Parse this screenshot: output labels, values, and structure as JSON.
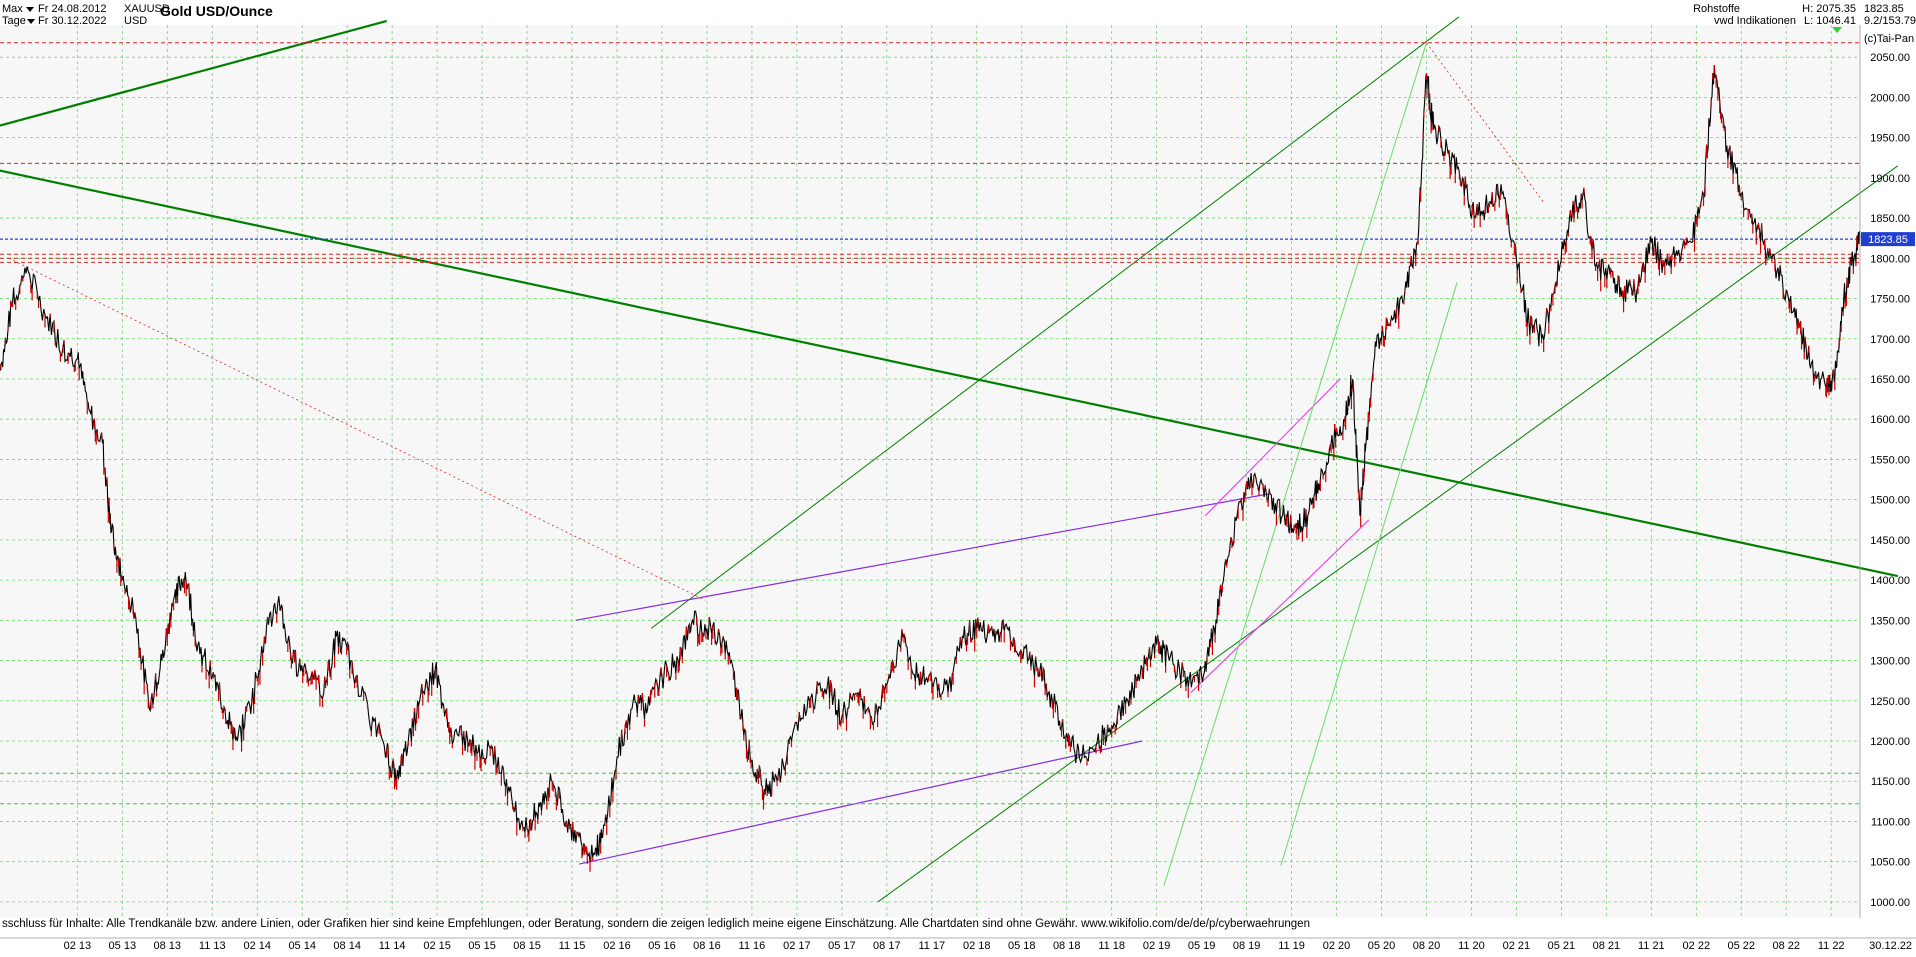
{
  "header": {
    "range_label": "Max",
    "period_label": "Tage",
    "date_from": "Fr 24.08.2012",
    "date_to": "Fr 30.12.2022",
    "symbol": "XAUUSD",
    "currency": "USD",
    "title": "Gold USD/Ounce",
    "category": "Rohstoffe",
    "source": "vwd Indikationen",
    "high_label": "H: 2075.35",
    "low_label": "L: 1046.41",
    "last_value": "1823.85",
    "change_label": "9.2/153.79",
    "copyright": "(c)Tai-Pan"
  },
  "disclaimer": "sschluss für Inhalte: Alle Trendkanäle bzw. andere Linien, oder Grafiken hier sind keine Empfehlungen, oder Beratung, sondern die zeigen lediglich meine eigene Einschätzung. Alle Chartdaten sind ohne Gewähr.  www.wikifolio.com/de/de/p/cyberwaehrungen",
  "colors": {
    "price": "#000000",
    "down_candle": "#cc0000",
    "grid": "#33cc33",
    "trend_green": "#008000",
    "trend_light": "#66dd66",
    "violet": "#8a2be2",
    "magenta": "#ee44ee",
    "resistance_red": "#dd2222",
    "last_price_line": "#1f3fd0",
    "last_price_badge": "#1f3fd0"
  },
  "chart_data": {
    "type": "line",
    "title": "Gold USD/Ounce",
    "xlabel": "",
    "ylabel": "",
    "xlim": [
      2012.65,
      2022.99
    ],
    "ylim": [
      980,
      2090
    ],
    "y_ticks": [
      1000,
      1050,
      1100,
      1150,
      1200,
      1250,
      1300,
      1350,
      1400,
      1450,
      1500,
      1550,
      1600,
      1650,
      1700,
      1750,
      1800,
      1850,
      1900,
      1950,
      2000,
      2050
    ],
    "x_ticks": [
      {
        "label": "02 13",
        "t": 2013.08
      },
      {
        "label": "05 13",
        "t": 2013.33
      },
      {
        "label": "08 13",
        "t": 2013.58
      },
      {
        "label": "11 13",
        "t": 2013.83
      },
      {
        "label": "02 14",
        "t": 2014.08
      },
      {
        "label": "05 14",
        "t": 2014.33
      },
      {
        "label": "08 14",
        "t": 2014.58
      },
      {
        "label": "11 14",
        "t": 2014.83
      },
      {
        "label": "02 15",
        "t": 2015.08
      },
      {
        "label": "05 15",
        "t": 2015.33
      },
      {
        "label": "08 15",
        "t": 2015.58
      },
      {
        "label": "11 15",
        "t": 2015.83
      },
      {
        "label": "02 16",
        "t": 2016.08
      },
      {
        "label": "05 16",
        "t": 2016.33
      },
      {
        "label": "08 16",
        "t": 2016.58
      },
      {
        "label": "11 16",
        "t": 2016.83
      },
      {
        "label": "02 17",
        "t": 2017.08
      },
      {
        "label": "05 17",
        "t": 2017.33
      },
      {
        "label": "08 17",
        "t": 2017.58
      },
      {
        "label": "11 17",
        "t": 2017.83
      },
      {
        "label": "02 18",
        "t": 2018.08
      },
      {
        "label": "05 18",
        "t": 2018.33
      },
      {
        "label": "08 18",
        "t": 2018.58
      },
      {
        "label": "11 18",
        "t": 2018.83
      },
      {
        "label": "02 19",
        "t": 2019.08
      },
      {
        "label": "05 19",
        "t": 2019.33
      },
      {
        "label": "08 19",
        "t": 2019.58
      },
      {
        "label": "11 19",
        "t": 2019.83
      },
      {
        "label": "02 20",
        "t": 2020.08
      },
      {
        "label": "05 20",
        "t": 2020.33
      },
      {
        "label": "08 20",
        "t": 2020.58
      },
      {
        "label": "11 20",
        "t": 2020.83
      },
      {
        "label": "02 21",
        "t": 2021.08
      },
      {
        "label": "05 21",
        "t": 2021.33
      },
      {
        "label": "08 21",
        "t": 2021.58
      },
      {
        "label": "11 21",
        "t": 2021.83
      },
      {
        "label": "02 22",
        "t": 2022.08
      },
      {
        "label": "05 22",
        "t": 2022.33
      },
      {
        "label": "08 22",
        "t": 2022.58
      },
      {
        "label": "11 22",
        "t": 2022.83
      }
    ],
    "end_date_label": "30.12.22",
    "last_price": 1823.85,
    "grid": true,
    "series": [
      {
        "values": [
          [
            2012.65,
            1660
          ],
          [
            2012.72,
            1745
          ],
          [
            2012.8,
            1790
          ],
          [
            2012.9,
            1730
          ],
          [
            2013.0,
            1690
          ],
          [
            2013.08,
            1675
          ],
          [
            2013.15,
            1610
          ],
          [
            2013.22,
            1570
          ],
          [
            2013.27,
            1460
          ],
          [
            2013.33,
            1400
          ],
          [
            2013.4,
            1360
          ],
          [
            2013.48,
            1240
          ],
          [
            2013.55,
            1300
          ],
          [
            2013.62,
            1380
          ],
          [
            2013.68,
            1410
          ],
          [
            2013.75,
            1320
          ],
          [
            2013.83,
            1280
          ],
          [
            2013.9,
            1240
          ],
          [
            2013.97,
            1200
          ],
          [
            2014.05,
            1250
          ],
          [
            2014.12,
            1330
          ],
          [
            2014.2,
            1380
          ],
          [
            2014.27,
            1300
          ],
          [
            2014.35,
            1290
          ],
          [
            2014.45,
            1260
          ],
          [
            2014.52,
            1330
          ],
          [
            2014.6,
            1300
          ],
          [
            2014.7,
            1230
          ],
          [
            2014.8,
            1190
          ],
          [
            2014.85,
            1150
          ],
          [
            2014.92,
            1200
          ],
          [
            2015.0,
            1260
          ],
          [
            2015.07,
            1290
          ],
          [
            2015.15,
            1210
          ],
          [
            2015.25,
            1200
          ],
          [
            2015.33,
            1190
          ],
          [
            2015.42,
            1180
          ],
          [
            2015.5,
            1120
          ],
          [
            2015.58,
            1090
          ],
          [
            2015.65,
            1120
          ],
          [
            2015.72,
            1150
          ],
          [
            2015.8,
            1100
          ],
          [
            2015.88,
            1075
          ],
          [
            2015.95,
            1060
          ],
          [
            2016.0,
            1080
          ],
          [
            2016.08,
            1180
          ],
          [
            2016.17,
            1250
          ],
          [
            2016.25,
            1240
          ],
          [
            2016.33,
            1280
          ],
          [
            2016.42,
            1300
          ],
          [
            2016.5,
            1350
          ],
          [
            2016.58,
            1340
          ],
          [
            2016.67,
            1330
          ],
          [
            2016.75,
            1260
          ],
          [
            2016.82,
            1180
          ],
          [
            2016.9,
            1140
          ],
          [
            2016.97,
            1150
          ],
          [
            2017.05,
            1200
          ],
          [
            2017.15,
            1250
          ],
          [
            2017.25,
            1270
          ],
          [
            2017.33,
            1230
          ],
          [
            2017.42,
            1260
          ],
          [
            2017.5,
            1220
          ],
          [
            2017.58,
            1270
          ],
          [
            2017.67,
            1330
          ],
          [
            2017.75,
            1280
          ],
          [
            2017.83,
            1275
          ],
          [
            2017.92,
            1260
          ],
          [
            2018.0,
            1330
          ],
          [
            2018.08,
            1340
          ],
          [
            2018.17,
            1330
          ],
          [
            2018.25,
            1340
          ],
          [
            2018.33,
            1310
          ],
          [
            2018.42,
            1290
          ],
          [
            2018.5,
            1250
          ],
          [
            2018.58,
            1210
          ],
          [
            2018.65,
            1180
          ],
          [
            2018.75,
            1200
          ],
          [
            2018.83,
            1220
          ],
          [
            2018.92,
            1250
          ],
          [
            2019.0,
            1290
          ],
          [
            2019.08,
            1320
          ],
          [
            2019.15,
            1300
          ],
          [
            2019.25,
            1280
          ],
          [
            2019.33,
            1280
          ],
          [
            2019.4,
            1340
          ],
          [
            2019.47,
            1420
          ],
          [
            2019.55,
            1500
          ],
          [
            2019.62,
            1530
          ],
          [
            2019.7,
            1500
          ],
          [
            2019.78,
            1480
          ],
          [
            2019.85,
            1465
          ],
          [
            2019.92,
            1480
          ],
          [
            2019.98,
            1520
          ],
          [
            2020.05,
            1570
          ],
          [
            2020.12,
            1600
          ],
          [
            2020.17,
            1650
          ],
          [
            2020.21,
            1480
          ],
          [
            2020.24,
            1560
          ],
          [
            2020.3,
            1690
          ],
          [
            2020.38,
            1720
          ],
          [
            2020.46,
            1760
          ],
          [
            2020.53,
            1820
          ],
          [
            2020.58,
            2030
          ],
          [
            2020.62,
            1960
          ],
          [
            2020.7,
            1930
          ],
          [
            2020.78,
            1900
          ],
          [
            2020.85,
            1850
          ],
          [
            2020.93,
            1870
          ],
          [
            2021.0,
            1880
          ],
          [
            2021.08,
            1800
          ],
          [
            2021.15,
            1720
          ],
          [
            2021.22,
            1700
          ],
          [
            2021.3,
            1770
          ],
          [
            2021.38,
            1860
          ],
          [
            2021.45,
            1880
          ],
          [
            2021.52,
            1790
          ],
          [
            2021.6,
            1780
          ],
          [
            2021.67,
            1760
          ],
          [
            2021.75,
            1760
          ],
          [
            2021.83,
            1820
          ],
          [
            2021.9,
            1790
          ],
          [
            2021.97,
            1810
          ],
          [
            2022.05,
            1820
          ],
          [
            2022.12,
            1880
          ],
          [
            2022.18,
            2040
          ],
          [
            2022.25,
            1940
          ],
          [
            2022.33,
            1880
          ],
          [
            2022.42,
            1840
          ],
          [
            2022.5,
            1800
          ],
          [
            2022.58,
            1760
          ],
          [
            2022.65,
            1720
          ],
          [
            2022.72,
            1670
          ],
          [
            2022.8,
            1640
          ],
          [
            2022.85,
            1650
          ],
          [
            2022.9,
            1750
          ],
          [
            2022.95,
            1800
          ],
          [
            2022.99,
            1823.85
          ]
        ]
      }
    ],
    "horizontal_levels": [
      {
        "y": 2068,
        "style": "red-dashed"
      },
      {
        "y": 1918,
        "style": "red-dashed"
      },
      {
        "y": 1805,
        "style": "red-dashed"
      },
      {
        "y": 1800,
        "style": "red-dashed"
      },
      {
        "y": 1795,
        "style": "red-dashed"
      },
      {
        "y": 1823.85,
        "style": "blue-dashed"
      },
      {
        "y": 1160,
        "style": "green-dashed"
      },
      {
        "y": 1122,
        "style": "green-dashed"
      }
    ],
    "trend_lines": [
      {
        "style": "green-thick",
        "from": [
          2012.0,
          1940
        ],
        "to": [
          2023.2,
          1405
        ]
      },
      {
        "style": "green-thin",
        "from": [
          2016.27,
          1340
        ],
        "to": [
          2020.76,
          2100
        ]
      },
      {
        "style": "green-thin",
        "from": [
          2017.53,
          1000
        ],
        "to": [
          2023.2,
          1915
        ]
      },
      {
        "style": "violet",
        "from": [
          2015.87,
          1047
        ],
        "to": [
          2019.0,
          1200
        ]
      },
      {
        "style": "violet",
        "from": [
          2015.85,
          1350
        ],
        "to": [
          2019.7,
          1507
        ]
      },
      {
        "style": "magenta",
        "from": [
          2019.35,
          1480
        ],
        "to": [
          2020.1,
          1650
        ]
      },
      {
        "style": "magenta",
        "from": [
          2019.27,
          1260
        ],
        "to": [
          2020.26,
          1475
        ]
      },
      {
        "style": "light-green",
        "from": [
          2019.12,
          1020
        ],
        "to": [
          2020.58,
          2068
        ]
      },
      {
        "style": "light-green",
        "from": [
          2019.77,
          1045
        ],
        "to": [
          2020.75,
          1770
        ]
      },
      {
        "style": "red-dotted",
        "from": [
          2012.7,
          1800
        ],
        "to": [
          2016.57,
          1375
        ]
      },
      {
        "style": "red-dotted",
        "from": [
          2020.58,
          2068
        ],
        "to": [
          2021.23,
          1870
        ]
      },
      {
        "style": "green-thick",
        "from": [
          2012.65,
          1965
        ],
        "to": [
          2014.8,
          2095
        ]
      }
    ]
  }
}
